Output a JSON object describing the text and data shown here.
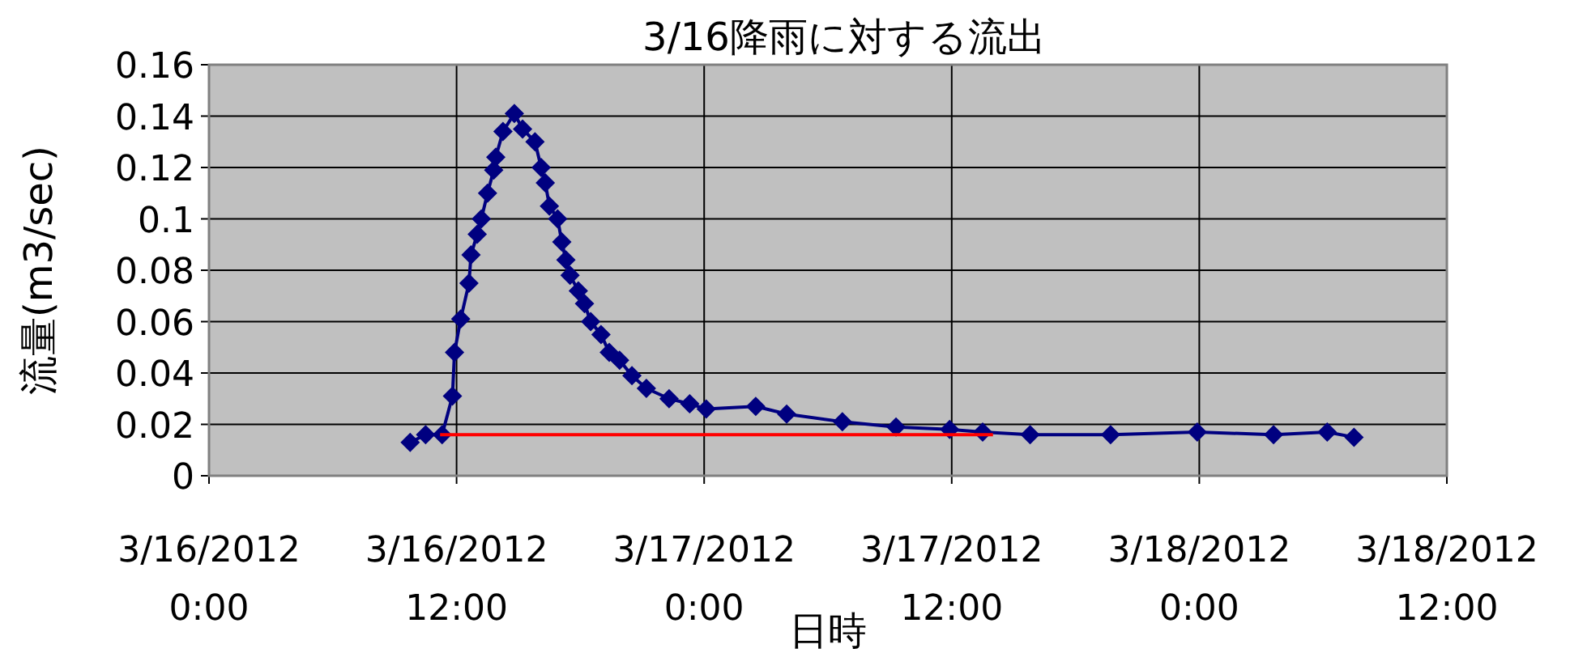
{
  "chart_data": {
    "type": "line",
    "title": "3/16降雨に対する流出",
    "xlabel": "日時",
    "ylabel": "流量(m3/sec)",
    "xlim": [
      "2012-03-16T00:00",
      "2012-03-18T12:00"
    ],
    "xticks": [
      {
        "value": "2012-03-16T00:00",
        "label": "3/16/2012\n0:00"
      },
      {
        "value": "2012-03-16T12:00",
        "label": "3/16/2012\n12:00"
      },
      {
        "value": "2012-03-17T00:00",
        "label": "3/17/2012\n0:00"
      },
      {
        "value": "2012-03-17T12:00",
        "label": "3/17/2012\n12:00"
      },
      {
        "value": "2012-03-18T00:00",
        "label": "3/18/2012\n0:00"
      },
      {
        "value": "2012-03-18T12:00",
        "label": "3/18/2012\n12:00"
      }
    ],
    "ylim": [
      0,
      0.16
    ],
    "yticks": [
      0,
      0.02,
      0.04,
      0.06,
      0.08,
      0.1,
      0.12,
      0.14,
      0.16
    ],
    "grid": true,
    "series": [
      {
        "color": "#000080",
        "marker": "diamond",
        "line_style": "solid",
        "x": [
          "2012-03-16T09:45",
          "2012-03-16T10:30",
          "2012-03-16T11:18",
          "2012-03-16T11:48",
          "2012-03-16T11:54",
          "2012-03-16T12:12",
          "2012-03-16T12:36",
          "2012-03-16T12:42",
          "2012-03-16T13:00",
          "2012-03-16T13:12",
          "2012-03-16T13:30",
          "2012-03-16T13:48",
          "2012-03-16T13:54",
          "2012-03-16T14:15",
          "2012-03-16T14:48",
          "2012-03-16T15:12",
          "2012-03-16T15:48",
          "2012-03-16T16:06",
          "2012-03-16T16:18",
          "2012-03-16T16:30",
          "2012-03-16T16:54",
          "2012-03-16T17:06",
          "2012-03-16T17:18",
          "2012-03-16T17:30",
          "2012-03-16T17:54",
          "2012-03-16T18:12",
          "2012-03-16T18:30",
          "2012-03-16T19:00",
          "2012-03-16T19:24",
          "2012-03-16T19:54",
          "2012-03-16T20:30",
          "2012-03-16T21:12",
          "2012-03-16T22:18",
          "2012-03-16T23:18",
          "2012-03-17T00:06",
          "2012-03-17T02:30",
          "2012-03-17T04:00",
          "2012-03-17T06:42",
          "2012-03-17T09:18",
          "2012-03-17T11:54",
          "2012-03-17T13:30",
          "2012-03-17T15:48",
          "2012-03-17T19:42",
          "2012-03-17T23:54",
          "2012-03-18T03:36",
          "2012-03-18T06:12",
          "2012-03-18T07:30"
        ],
        "values": [
          0.013,
          0.016,
          0.016,
          0.031,
          0.048,
          0.061,
          0.075,
          0.086,
          0.094,
          0.1,
          0.11,
          0.119,
          0.124,
          0.134,
          0.141,
          0.135,
          0.13,
          0.12,
          0.114,
          0.105,
          0.1,
          0.091,
          0.084,
          0.078,
          0.072,
          0.067,
          0.06,
          0.055,
          0.048,
          0.045,
          0.039,
          0.034,
          0.03,
          0.028,
          0.026,
          0.027,
          0.024,
          0.021,
          0.019,
          0.018,
          0.017,
          0.016,
          0.016,
          0.017,
          0.016,
          0.017,
          0.015
        ]
      },
      {
        "color": "#ff0000",
        "marker": "none",
        "line_style": "solid",
        "x": [
          "2012-03-16T11:12",
          "2012-03-17T14:00"
        ],
        "values": [
          0.016,
          0.016
        ]
      }
    ]
  }
}
